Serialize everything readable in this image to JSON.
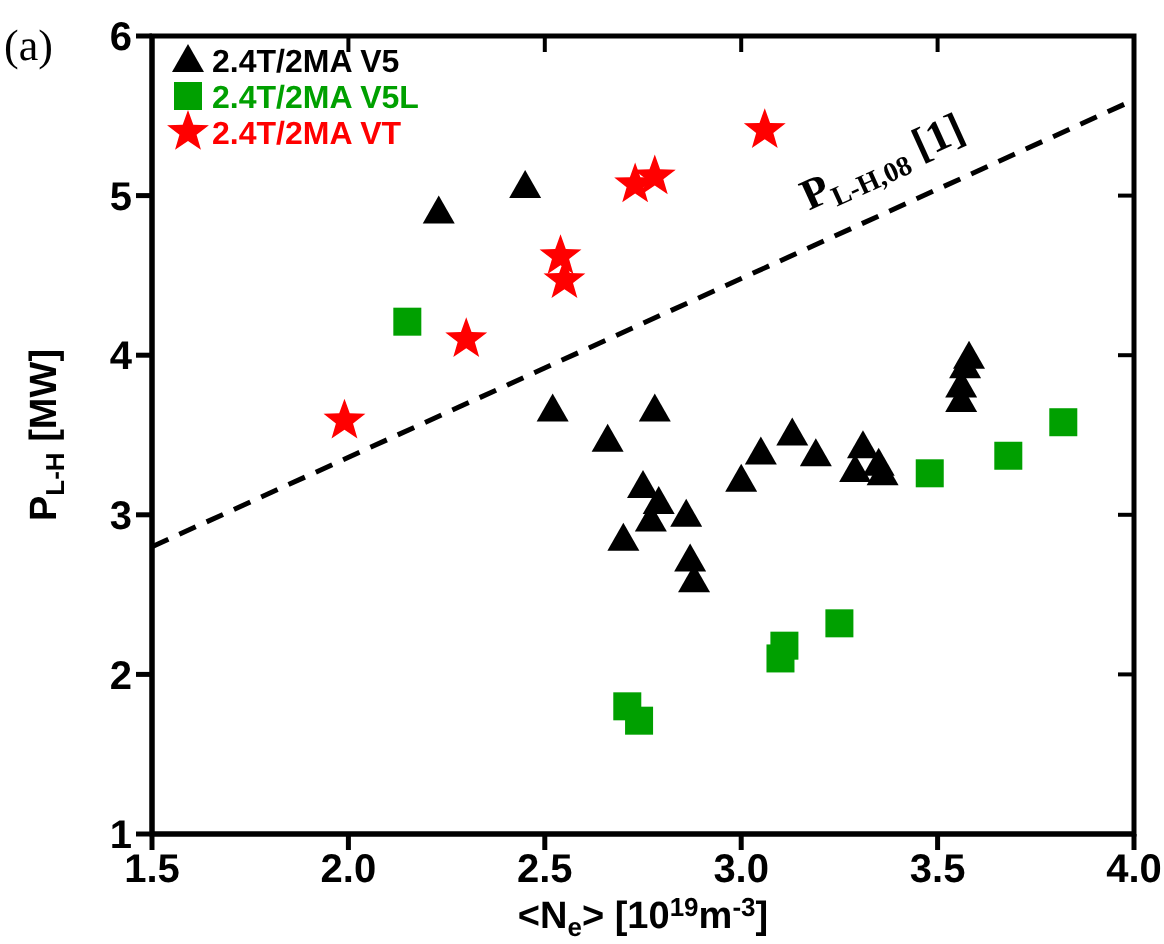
{
  "chart_data": {
    "type": "scatter",
    "xlabel": "<N$_{e}$> [10$^{19}$m$^{-3}$]",
    "ylabel": "P$_{L-H}$ [MW]",
    "xlim": [
      1.5,
      4.0
    ],
    "ylim": [
      1,
      6
    ],
    "xticks": [
      {
        "value": 1.5,
        "label": "1.5"
      },
      {
        "value": 2,
        "label": "2.0"
      },
      {
        "value": 2.5,
        "label": "2.5"
      },
      {
        "value": 3,
        "label": "3.0"
      },
      {
        "value": 3.5,
        "label": "3.5"
      },
      {
        "value": 4,
        "label": "4.0"
      }
    ],
    "yticks": [
      1,
      2,
      3,
      4,
      5,
      6
    ],
    "grid": false,
    "legend": "top left",
    "series": [
      {
        "name": "2.4T/2MA V5",
        "color": "#000000",
        "marker": "triangle",
        "x": [
          2.23,
          2.45,
          2.52,
          2.66,
          2.78,
          2.75,
          2.79,
          2.77,
          2.86,
          2.7,
          2.87,
          2.88,
          3.0,
          3.05,
          3.13,
          3.19,
          3.31,
          3.29,
          3.35,
          3.36,
          3.56,
          3.56,
          3.57,
          3.58
        ],
        "values": [
          4.9,
          5.06,
          3.66,
          3.47,
          3.66,
          3.18,
          3.08,
          2.97,
          3.0,
          2.85,
          2.72,
          2.59,
          3.22,
          3.39,
          3.51,
          3.38,
          3.43,
          3.28,
          3.32,
          3.26,
          3.72,
          3.81,
          3.93,
          3.99
        ]
      },
      {
        "name": "2.4T/2MA V5L",
        "color": "#00a000",
        "marker": "square",
        "x": [
          2.15,
          2.71,
          2.74,
          3.1,
          3.11,
          3.25,
          3.48,
          3.68,
          3.82
        ],
        "values": [
          4.21,
          1.8,
          1.71,
          2.1,
          2.18,
          2.32,
          3.26,
          3.37,
          3.58
        ]
      },
      {
        "name": "2.4T/2MA VT",
        "color": "#ff0000",
        "marker": "star",
        "x": [
          1.99,
          2.3,
          2.54,
          2.55,
          2.73,
          2.78,
          3.06
        ],
        "values": [
          3.59,
          4.1,
          4.62,
          4.47,
          5.07,
          5.12,
          5.41
        ]
      },
      {
        "type": "line",
        "color": "#000000",
        "line_style": "dashed",
        "marker": "none",
        "x": [
          1.5,
          4.0
        ],
        "values": [
          2.8,
          5.6
        ]
      }
    ],
    "annotations": [
      "(a)",
      "P$_{L-H,08}$ [1]"
    ]
  }
}
